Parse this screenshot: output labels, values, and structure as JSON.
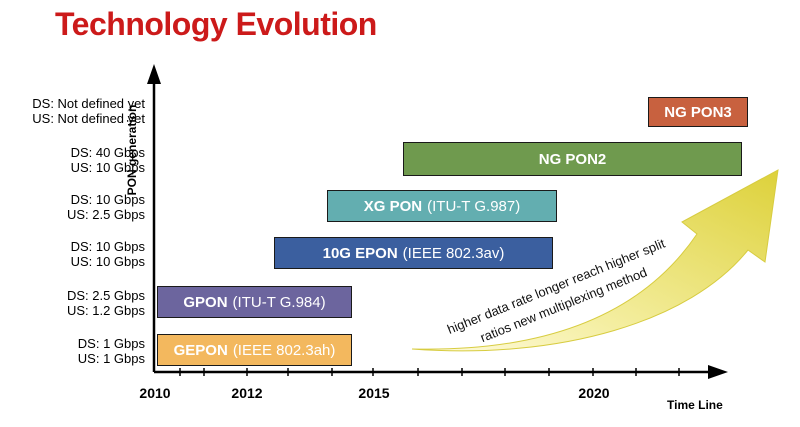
{
  "title": "Technology Evolution",
  "axis": {
    "y_title": "PON generation",
    "x_title": "Time Line",
    "x_ticks": [
      "2010",
      "2012",
      "2015",
      "2020"
    ]
  },
  "y_labels": [
    {
      "ds": "DS: Not defined yet",
      "us": "US: Not defined yet"
    },
    {
      "ds": "DS: 40 Gbps",
      "us": "US: 10 Gbps"
    },
    {
      "ds": "DS: 10 Gbps",
      "us": "US: 2.5 Gbps"
    },
    {
      "ds": "DS: 10 Gbps",
      "us": "US: 10 Gbps"
    },
    {
      "ds": "DS: 2.5 Gbps",
      "us": "US: 1.2 Gbps"
    },
    {
      "ds": "DS: 1 Gbps",
      "us": "US: 1 Gbps"
    }
  ],
  "bars": {
    "ngpon3": {
      "name": "NG PON3",
      "standard": "",
      "color": "#c8613f"
    },
    "ngpon2": {
      "name": "NG PON2",
      "standard": "",
      "color": "#6f9a4e"
    },
    "xgpon": {
      "name": "XG PON",
      "standard": "(ITU-T G.987)",
      "color": "#63aeb0"
    },
    "tenGepon": {
      "name": "10G EPON",
      "standard": "(IEEE 802.3av)",
      "color": "#3b5f9f"
    },
    "gpon": {
      "name": "GPON",
      "standard": "(ITU-T G.984)",
      "color": "#6c659e"
    },
    "gepon": {
      "name": "GEPON",
      "standard": "(IEEE 802.3ah)",
      "color": "#f3b85e"
    }
  },
  "arrow": {
    "line1": "higher data rate longer reach higher split",
    "line2": "ratios new multiplexing method",
    "color": "#e8dc50"
  }
}
